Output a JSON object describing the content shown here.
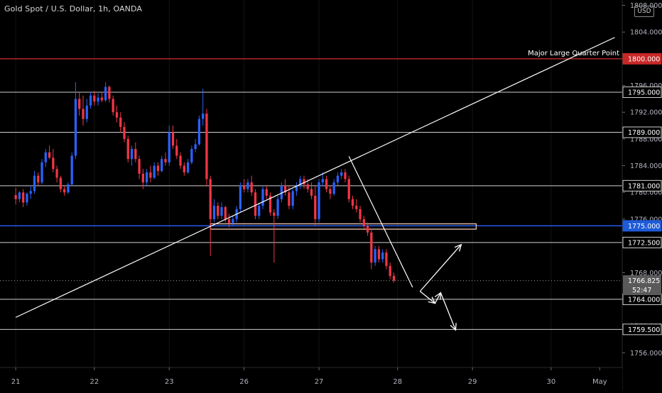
{
  "chart_data": {
    "type": "candlestick",
    "title": "Gold Spot / U.S. Dollar, 1h, OANDA",
    "currency": "USD",
    "x_ticks": [
      {
        "label": "21",
        "i": 0
      },
      {
        "label": "22",
        "i": 21
      },
      {
        "label": "23",
        "i": 41
      },
      {
        "label": "26",
        "i": 61
      },
      {
        "label": "27",
        "i": 81
      },
      {
        "label": "28",
        "i": 102
      },
      {
        "label": "29",
        "i": 122
      },
      {
        "label": "30",
        "i": 143
      },
      {
        "label": "May",
        "i": 156
      }
    ],
    "y_ticks": [
      1756,
      1760,
      1764,
      1768,
      1772,
      1776,
      1780,
      1784,
      1788,
      1792,
      1796,
      1800,
      1804,
      1808
    ],
    "ylim": [
      1753.8,
      1808.8
    ],
    "colors": {
      "up": "#2962ff",
      "down": "#f23645",
      "background": "#000000",
      "text": "#b2b5be"
    },
    "horizontal_levels": [
      {
        "price": 1800.0,
        "color": "#d32f2f",
        "label": "1800.000",
        "note": "Major Large Quarter Point"
      },
      {
        "price": 1795.0,
        "color": "#d0d0d0",
        "label": "1795.000"
      },
      {
        "price": 1789.0,
        "color": "#d0d0d0",
        "label": "1789.000"
      },
      {
        "price": 1781.0,
        "color": "#d0d0d0",
        "label": "1781.000"
      },
      {
        "price": 1775.0,
        "color": "#2962ff",
        "label": "1775.000"
      },
      {
        "price": 1772.5,
        "color": "#d0d0d0",
        "label": "1772.500"
      },
      {
        "price": 1764.0,
        "color": "#d0d0d0",
        "label": "1764.000"
      },
      {
        "price": 1759.5,
        "color": "#d0d0d0",
        "label": "1759.500"
      }
    ],
    "current_price": {
      "label": "1766.825",
      "timer": "52:47"
    },
    "candles": [
      [
        1779.6,
        1780.7,
        1778.2,
        1779.0
      ],
      [
        1779.0,
        1780.2,
        1778.5,
        1780.0
      ],
      [
        1780.0,
        1780.5,
        1777.8,
        1778.5
      ],
      [
        1778.5,
        1780.0,
        1778.0,
        1779.8
      ],
      [
        1779.8,
        1781.0,
        1779.0,
        1780.2
      ],
      [
        1780.2,
        1783.2,
        1779.8,
        1782.5
      ],
      [
        1782.5,
        1783.0,
        1781.0,
        1781.5
      ],
      [
        1781.5,
        1785.0,
        1781.2,
        1784.5
      ],
      [
        1784.5,
        1786.5,
        1783.8,
        1786.0
      ],
      [
        1786.0,
        1787.0,
        1785.0,
        1785.2
      ],
      [
        1785.2,
        1786.5,
        1783.0,
        1783.5
      ],
      [
        1783.5,
        1784.0,
        1781.5,
        1782.2
      ],
      [
        1782.2,
        1782.5,
        1780.0,
        1780.5
      ],
      [
        1780.5,
        1781.0,
        1779.5,
        1780.0
      ],
      [
        1780.0,
        1781.5,
        1779.8,
        1781.2
      ],
      [
        1781.2,
        1786.0,
        1781.0,
        1785.5
      ],
      [
        1785.5,
        1796.5,
        1785.0,
        1794.0
      ],
      [
        1794.0,
        1795.0,
        1791.5,
        1792.5
      ],
      [
        1792.5,
        1794.5,
        1790.0,
        1791.0
      ],
      [
        1791.0,
        1794.0,
        1790.5,
        1793.0
      ],
      [
        1793.0,
        1795.0,
        1792.5,
        1794.5
      ],
      [
        1794.5,
        1795.2,
        1793.0,
        1793.6
      ],
      [
        1793.6,
        1794.8,
        1793.0,
        1794.2
      ],
      [
        1794.2,
        1795.0,
        1793.5,
        1793.8
      ],
      [
        1793.8,
        1796.5,
        1793.5,
        1795.8
      ],
      [
        1795.8,
        1796.0,
        1793.5,
        1794.0
      ],
      [
        1794.0,
        1794.5,
        1791.5,
        1792.0
      ],
      [
        1792.0,
        1793.0,
        1790.5,
        1791.2
      ],
      [
        1791.2,
        1792.0,
        1789.0,
        1789.8
      ],
      [
        1789.8,
        1790.5,
        1787.5,
        1788.0
      ],
      [
        1788.0,
        1788.5,
        1784.5,
        1785.0
      ],
      [
        1785.0,
        1787.0,
        1784.0,
        1786.5
      ],
      [
        1786.5,
        1787.5,
        1784.5,
        1785.0
      ],
      [
        1785.0,
        1785.5,
        1782.0,
        1782.8
      ],
      [
        1782.8,
        1783.5,
        1780.5,
        1781.5
      ],
      [
        1781.5,
        1783.5,
        1781.0,
        1783.0
      ],
      [
        1783.0,
        1784.0,
        1781.5,
        1782.2
      ],
      [
        1782.2,
        1784.5,
        1782.0,
        1784.0
      ],
      [
        1784.0,
        1784.5,
        1782.5,
        1783.2
      ],
      [
        1783.2,
        1785.5,
        1783.0,
        1785.0
      ],
      [
        1785.0,
        1786.0,
        1784.0,
        1784.5
      ],
      [
        1784.5,
        1790.0,
        1784.0,
        1789.0
      ],
      [
        1789.0,
        1790.0,
        1786.5,
        1787.0
      ],
      [
        1787.0,
        1788.0,
        1785.0,
        1785.5
      ],
      [
        1785.5,
        1786.0,
        1783.5,
        1784.0
      ],
      [
        1784.0,
        1784.5,
        1782.5,
        1783.0
      ],
      [
        1783.0,
        1785.0,
        1782.8,
        1784.5
      ],
      [
        1784.5,
        1787.0,
        1784.2,
        1786.5
      ],
      [
        1786.5,
        1788.0,
        1786.0,
        1787.2
      ],
      [
        1787.2,
        1791.5,
        1787.0,
        1791.0
      ],
      [
        1791.0,
        1795.5,
        1790.0,
        1791.8
      ],
      [
        1791.8,
        1792.5,
        1781.0,
        1782.0
      ],
      [
        1782.0,
        1782.5,
        1770.5,
        1776.0
      ],
      [
        1776.0,
        1779.0,
        1775.5,
        1778.0
      ],
      [
        1778.0,
        1778.5,
        1776.0,
        1776.5
      ],
      [
        1776.5,
        1778.5,
        1776.0,
        1777.8
      ],
      [
        1777.8,
        1778.0,
        1775.5,
        1776.0
      ],
      [
        1776.0,
        1776.8,
        1774.8,
        1775.4
      ],
      [
        1775.4,
        1776.5,
        1775.0,
        1776.0
      ],
      [
        1776.0,
        1778.0,
        1775.5,
        1777.5
      ],
      [
        1777.5,
        1781.5,
        1777.0,
        1781.0
      ],
      [
        1781.0,
        1782.0,
        1780.0,
        1780.5
      ],
      [
        1780.5,
        1782.0,
        1780.0,
        1781.5
      ],
      [
        1781.5,
        1782.5,
        1779.5,
        1780.0
      ],
      [
        1780.0,
        1780.5,
        1776.0,
        1776.5
      ],
      [
        1776.5,
        1778.5,
        1776.0,
        1778.0
      ],
      [
        1778.0,
        1781.0,
        1777.5,
        1780.5
      ],
      [
        1780.5,
        1781.0,
        1779.0,
        1779.5
      ],
      [
        1779.5,
        1780.0,
        1776.5,
        1777.0
      ],
      [
        1777.0,
        1777.5,
        1769.5,
        1776.5
      ],
      [
        1776.5,
        1779.5,
        1776.0,
        1779.0
      ],
      [
        1779.0,
        1781.5,
        1778.5,
        1781.0
      ],
      [
        1781.0,
        1782.0,
        1779.5,
        1780.0
      ],
      [
        1780.0,
        1781.0,
        1777.5,
        1778.0
      ],
      [
        1778.0,
        1780.5,
        1777.5,
        1780.2
      ],
      [
        1780.2,
        1781.5,
        1779.5,
        1781.0
      ],
      [
        1781.0,
        1782.5,
        1780.5,
        1782.0
      ],
      [
        1782.0,
        1782.5,
        1780.5,
        1781.2
      ],
      [
        1781.2,
        1782.0,
        1780.0,
        1780.5
      ],
      [
        1780.5,
        1781.5,
        1779.0,
        1779.5
      ],
      [
        1779.5,
        1781.0,
        1775.0,
        1776.0
      ],
      [
        1776.0,
        1782.0,
        1775.5,
        1781.5
      ],
      [
        1781.5,
        1783.0,
        1781.0,
        1782.0
      ],
      [
        1782.0,
        1782.5,
        1780.0,
        1780.5
      ],
      [
        1780.5,
        1781.0,
        1779.0,
        1779.8
      ],
      [
        1779.8,
        1782.0,
        1779.5,
        1781.5
      ],
      [
        1781.5,
        1783.0,
        1781.0,
        1782.5
      ],
      [
        1782.5,
        1783.5,
        1782.0,
        1783.0
      ],
      [
        1783.0,
        1783.5,
        1781.5,
        1782.0
      ],
      [
        1782.0,
        1782.5,
        1778.5,
        1779.0
      ],
      [
        1779.0,
        1779.5,
        1777.5,
        1778.0
      ],
      [
        1778.0,
        1779.0,
        1777.0,
        1777.5
      ],
      [
        1777.5,
        1778.0,
        1775.5,
        1776.0
      ],
      [
        1776.0,
        1776.5,
        1774.5,
        1775.0
      ],
      [
        1775.0,
        1775.5,
        1773.5,
        1774.0
      ],
      [
        1774.0,
        1774.5,
        1768.5,
        1769.5
      ],
      [
        1769.5,
        1772.0,
        1769.0,
        1771.5
      ],
      [
        1771.5,
        1772.0,
        1769.5,
        1770.0
      ],
      [
        1770.0,
        1771.5,
        1769.5,
        1771.0
      ],
      [
        1771.0,
        1771.5,
        1768.5,
        1769.0
      ],
      [
        1769.0,
        1769.5,
        1767.0,
        1767.5
      ],
      [
        1767.5,
        1768.0,
        1766.5,
        1766.8
      ]
    ],
    "annotations": [
      {
        "kind": "trendline",
        "from": [
          0,
          1761.3
        ],
        "to": [
          160,
          1803.2
        ],
        "color": "#ffffff"
      },
      {
        "kind": "trendline",
        "from": [
          89,
          1785.4
        ],
        "to": [
          106,
          1765.8
        ],
        "color": "#ffffff"
      },
      {
        "kind": "rectangle",
        "from": [
          52,
          1775.3
        ],
        "to": [
          123,
          1774.5
        ],
        "color": "#f4c7b0"
      },
      {
        "kind": "arrow",
        "from": [
          108,
          1765.2
        ],
        "to": [
          119,
          1772.2
        ]
      },
      {
        "kind": "arrow",
        "from": [
          108,
          1765.2
        ],
        "to": [
          112,
          1763.4
        ]
      },
      {
        "kind": "arrow",
        "from": [
          112,
          1763.4
        ],
        "to": [
          113.5,
          1765.0
        ]
      },
      {
        "kind": "arrow",
        "from": [
          113.5,
          1765.0
        ],
        "to": [
          117.5,
          1759.4
        ]
      }
    ],
    "x_range": [
      -4.2,
      162
    ],
    "vertical_grid_x": [
      0,
      21,
      41,
      61,
      81,
      102,
      122,
      143
    ]
  }
}
